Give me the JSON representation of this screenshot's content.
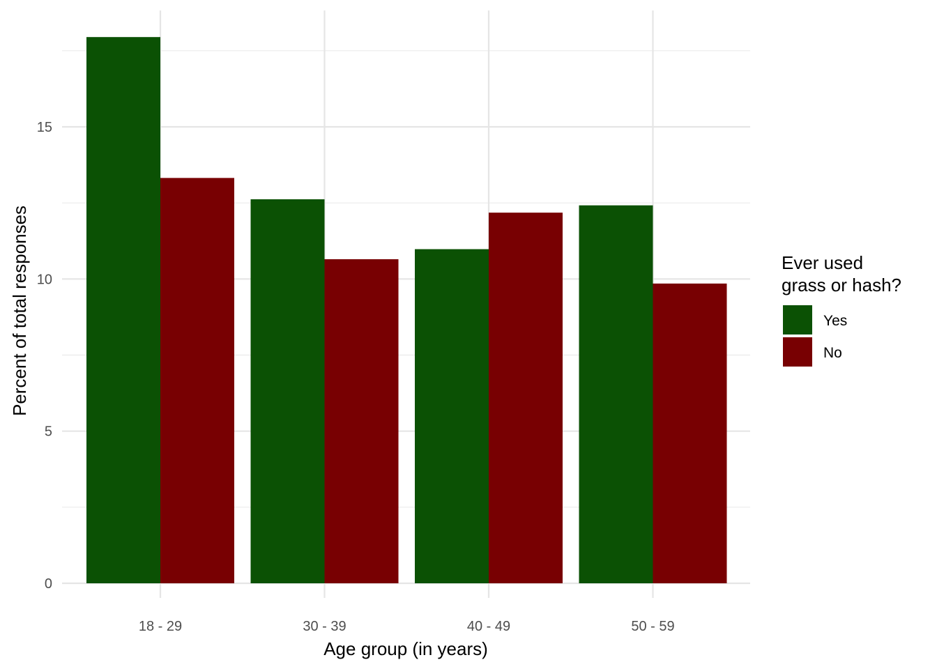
{
  "chart_data": {
    "type": "bar",
    "categories": [
      "18 - 29",
      "30 - 39",
      "40 - 49",
      "50 - 59"
    ],
    "series": [
      {
        "name": "Yes",
        "values": [
          17.95,
          12.62,
          10.98,
          12.42
        ],
        "color": "#0b5104"
      },
      {
        "name": "No",
        "values": [
          13.32,
          10.65,
          12.18,
          9.85
        ],
        "color": "#780002"
      }
    ],
    "xlabel": "Age group (in years)",
    "ylabel": "Percent of total responses",
    "ylim": [
      0,
      18.8
    ],
    "yticks": [
      0,
      5,
      10,
      15
    ],
    "ytick_labels": [
      "0",
      "5",
      "10",
      "15"
    ],
    "grid": true,
    "legend": {
      "title_lines": [
        "Ever used",
        "grass or hash?"
      ],
      "placement": "right"
    }
  }
}
